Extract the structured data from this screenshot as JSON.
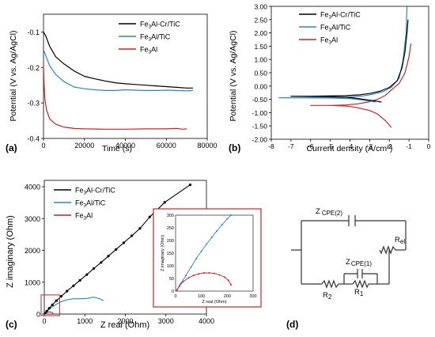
{
  "panels": {
    "a": {
      "label": "(a)"
    },
    "b": {
      "label": "(b)"
    },
    "c": {
      "label": "(c)"
    },
    "d": {
      "label": "(d)"
    }
  },
  "chart_data": [
    {
      "id": "a",
      "type": "line",
      "xlabel": "Time (s)",
      "ylabel": "Potential (V vs. Ag/AgCl)",
      "xlim": [
        0,
        80000
      ],
      "ylim": [
        -0.4,
        -0.05
      ],
      "xticks": [
        0,
        20000,
        40000,
        60000,
        80000
      ],
      "yticks": [
        -0.1,
        -0.2,
        -0.3,
        -0.4
      ],
      "legend": "top-right",
      "series": [
        {
          "name": "Fe3Al-Cr/TiC",
          "color": "#000000",
          "x": [
            0,
            1000,
            3000,
            6000,
            10000,
            15000,
            20000,
            25000,
            30000,
            35000,
            40000,
            45000,
            50000,
            55000,
            60000,
            65000,
            70000,
            73000
          ],
          "y": [
            -0.1,
            -0.11,
            -0.14,
            -0.17,
            -0.19,
            -0.21,
            -0.225,
            -0.232,
            -0.238,
            -0.243,
            -0.246,
            -0.248,
            -0.25,
            -0.252,
            -0.254,
            -0.256,
            -0.258,
            -0.258
          ]
        },
        {
          "name": "Fe3Al/TiC",
          "color": "#2e86c1",
          "x": [
            0,
            1000,
            3000,
            6000,
            10000,
            15000,
            20000,
            25000,
            30000,
            35000,
            40000,
            45000,
            50000,
            55000,
            60000,
            65000,
            70000,
            73000
          ],
          "y": [
            -0.15,
            -0.165,
            -0.195,
            -0.22,
            -0.24,
            -0.255,
            -0.26,
            -0.263,
            -0.265,
            -0.265,
            -0.263,
            -0.264,
            -0.265,
            -0.265,
            -0.264,
            -0.265,
            -0.266,
            -0.265
          ]
        },
        {
          "name": "Fe3Al",
          "color": "#c0272d",
          "x": [
            0,
            300,
            700,
            1500,
            3000,
            6000,
            10000,
            15000,
            20000,
            30000,
            40000,
            50000,
            60000,
            65000,
            68000,
            70000
          ],
          "y": [
            -0.19,
            -0.25,
            -0.29,
            -0.32,
            -0.345,
            -0.36,
            -0.368,
            -0.372,
            -0.373,
            -0.374,
            -0.374,
            -0.373,
            -0.373,
            -0.372,
            -0.374,
            -0.373
          ]
        }
      ]
    },
    {
      "id": "b",
      "type": "line",
      "xlabel": "Current density (A/cm²)",
      "ylabel": "Potential (V vs. Ag/AgCl)",
      "xlim": [
        -8,
        0
      ],
      "ylim": [
        -2.0,
        3.0
      ],
      "xticks": [
        -8,
        -7,
        -6,
        -5,
        -4,
        -3,
        -2,
        -1,
        0
      ],
      "yticks": [
        3.0,
        2.5,
        2.0,
        1.5,
        1.0,
        0.5,
        0.0,
        -0.5,
        -1.0,
        -1.5,
        -2.0
      ],
      "ytick_labels": [
        "3.00",
        "2.50",
        "2.00",
        "1.50",
        "1.00",
        "0.50",
        "0.00",
        "-0.50",
        "-1.00",
        "-1.50",
        "-2.00"
      ],
      "legend": "top-right",
      "series": [
        {
          "name": "Fe3Al-Cr/TiC",
          "color": "#000000",
          "x": [
            -2.4,
            -2.8,
            -3.3,
            -3.8,
            -4.2,
            -5.0,
            -6.0,
            -7.0,
            -6.0,
            -5.0,
            -4.2,
            -3.5,
            -3.0,
            -2.5,
            -2.0,
            -1.6,
            -1.35,
            -1.2,
            -1.1,
            -1.05
          ],
          "y": [
            -0.6,
            -0.55,
            -0.5,
            -0.45,
            -0.42,
            -0.4,
            -0.39,
            -0.38,
            -0.38,
            -0.37,
            -0.36,
            -0.33,
            -0.28,
            -0.2,
            -0.05,
            0.2,
            0.7,
            1.3,
            2.0,
            2.5
          ]
        },
        {
          "name": "Fe3Al/TiC",
          "color": "#2e86c1",
          "x": [
            -2.7,
            -3.1,
            -3.6,
            -4.0,
            -5.0,
            -6.5,
            -7.6,
            -6.5,
            -5.0,
            -4.0,
            -3.3,
            -2.8,
            -2.3,
            -1.9,
            -1.5,
            -1.3,
            -1.15,
            -1.1
          ],
          "y": [
            -0.6,
            -0.55,
            -0.5,
            -0.47,
            -0.45,
            -0.44,
            -0.44,
            -0.44,
            -0.43,
            -0.41,
            -0.37,
            -0.3,
            -0.2,
            -0.05,
            0.3,
            1.0,
            2.0,
            3.0
          ]
        },
        {
          "name": "Fe3Al",
          "color": "#c0272d",
          "x": [
            -1.9,
            -2.2,
            -2.6,
            -3.0,
            -3.4,
            -3.7,
            -4.2,
            -5.0,
            -6.0,
            -5.0,
            -4.2,
            -3.6,
            -3.1,
            -2.6,
            -2.2,
            -1.9,
            -1.5,
            -1.2,
            -1.0,
            -0.9
          ],
          "y": [
            -1.55,
            -1.3,
            -1.05,
            -0.92,
            -0.85,
            -0.8,
            -0.75,
            -0.73,
            -0.73,
            -0.73,
            -0.71,
            -0.67,
            -0.6,
            -0.5,
            -0.35,
            -0.15,
            0.1,
            0.5,
            1.1,
            1.6
          ]
        }
      ]
    },
    {
      "id": "c",
      "type": "scatter",
      "xlabel": "Z real (Ohm)",
      "ylabel": "Z imaginary (Ohm)",
      "xlim": [
        0,
        4000
      ],
      "ylim": [
        0,
        4200
      ],
      "xticks": [
        0,
        1000,
        2000,
        3000,
        4000
      ],
      "yticks": [
        0,
        1000,
        2000,
        3000,
        4000
      ],
      "legend": "top-left",
      "series": [
        {
          "name": "Fe3Al-Cr/TiC",
          "color": "#000000",
          "x": [
            20,
            60,
            120,
            200,
            300,
            420,
            560,
            720,
            880,
            1050,
            1220,
            1400,
            1580,
            1770,
            1960,
            2160,
            2360,
            2600,
            2970,
            3600
          ],
          "y": [
            30,
            90,
            180,
            290,
            420,
            560,
            720,
            890,
            1060,
            1240,
            1430,
            1620,
            1820,
            2030,
            2240,
            2460,
            2690,
            3050,
            3510,
            4060
          ]
        },
        {
          "name": "Fe3Al/TiC",
          "color": "#2e86c1",
          "x": [
            20,
            60,
            120,
            200,
            300,
            420,
            560,
            720,
            880,
            1050,
            1200,
            1300,
            1400,
            1460
          ],
          "y": [
            30,
            80,
            150,
            230,
            310,
            390,
            450,
            480,
            480,
            490,
            530,
            510,
            460,
            420
          ]
        },
        {
          "name": "Fe3Al",
          "color": "#c0272d",
          "x": [
            20,
            50,
            90,
            130,
            170,
            200,
            220
          ],
          "y": [
            10,
            40,
            60,
            70,
            60,
            40,
            20
          ]
        }
      ],
      "inset": {
        "xlim": [
          0,
          300
        ],
        "ylim": [
          0,
          300
        ],
        "xticks": [
          0,
          100,
          200,
          300
        ],
        "yticks": [
          0,
          50,
          100,
          150,
          200,
          250,
          300
        ],
        "xlabel": "Z real (Ohm)",
        "ylabel": "Z imaginary (Ohm)",
        "series": [
          {
            "name": "Fe3Al/TiC",
            "color": "#2e86c1",
            "x": [
              5,
              20,
              40,
              60,
              80,
              100,
              120,
              140,
              160,
              180,
              200,
              215
            ],
            "y": [
              5,
              30,
              62,
              95,
              128,
              158,
              186,
              212,
              238,
              262,
              285,
              300
            ]
          },
          {
            "name": "Fe3Al",
            "color": "#c0272d",
            "x": [
              5,
              15,
              30,
              50,
              70,
              90,
              110,
              130,
              150,
              170,
              190,
              205,
              215
            ],
            "y": [
              3,
              20,
              38,
              52,
              62,
              68,
              72,
              72,
              70,
              64,
              55,
              42,
              25
            ]
          }
        ]
      }
    }
  ],
  "circuit": {
    "labels": {
      "cpe2": "Z",
      "cpe2_sub": "CPE(2)",
      "cpe1": "Z",
      "cpe1_sub": "CPE(1)",
      "rel": "R",
      "rel_sub": "el",
      "r1": "R",
      "r1_sub": "1",
      "r2": "R",
      "r2_sub": "2"
    }
  }
}
